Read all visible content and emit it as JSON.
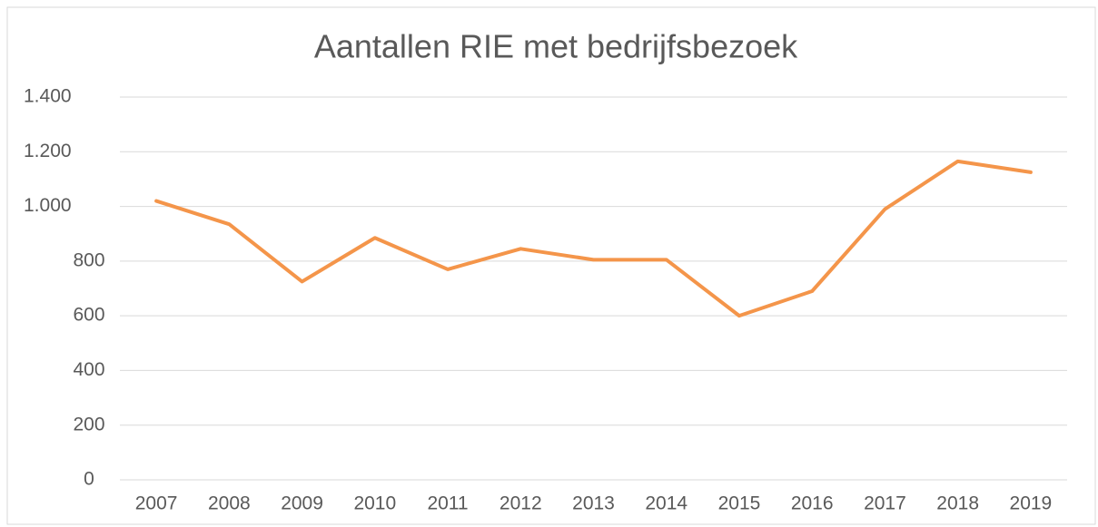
{
  "chart_data": {
    "type": "line",
    "title": "Aantallen RIE met bedrijfsbezoek",
    "categories": [
      "2007",
      "2008",
      "2009",
      "2010",
      "2011",
      "2012",
      "2013",
      "2014",
      "2015",
      "2016",
      "2017",
      "2018",
      "2019"
    ],
    "series": [
      {
        "name": "Aantallen",
        "color": "#f4954a",
        "values": [
          1020,
          935,
          725,
          885,
          770,
          845,
          805,
          805,
          600,
          690,
          990,
          1165,
          1125
        ]
      }
    ],
    "ylim": [
      0,
      1400
    ],
    "yticks": [
      0,
      200,
      400,
      600,
      800,
      {
        "value": 1000,
        "label": "1.000"
      },
      {
        "value": 1200,
        "label": "1.200"
      },
      {
        "value": 1400,
        "label": "1.400"
      }
    ],
    "grid": true
  }
}
